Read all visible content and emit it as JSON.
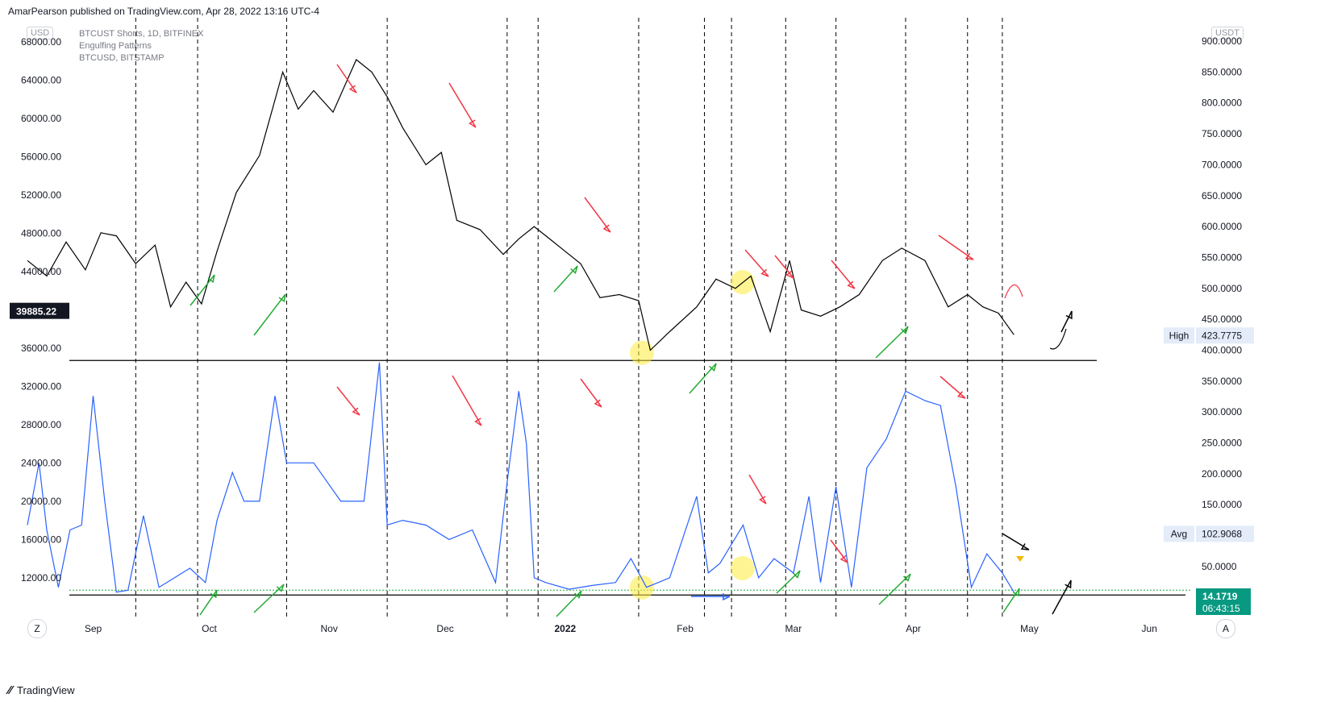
{
  "header": {
    "publisher": "AmarPearson published on TradingView.com, Apr 28, 2022 13:16 UTC-4"
  },
  "footer": {
    "brand": "TradingView"
  },
  "left_currency": "USD",
  "right_currency": "USDT",
  "legend": [
    "BTCUST Shorts, 1D, BITFINEX",
    "Engulfing Patterns",
    "BTCUSD, BITSTAMP"
  ],
  "left_price_tag": "39885.22",
  "buttons": {
    "left": "Z",
    "right": "A"
  },
  "colors": {
    "price_line": "#000000",
    "shorts_line": "#2962ff",
    "red_arrow": "#f23645",
    "green_arrow": "#22ab33",
    "highlight": "#ffeb3b",
    "last_value_bg": "#089981"
  },
  "chart_data": {
    "type": "line",
    "x_axis": {
      "tick_labels": [
        "Sep",
        "Oct",
        "Nov",
        "Dec",
        "2022",
        "Feb",
        "Mar",
        "Apr",
        "May",
        "Jun"
      ],
      "range": [
        "2021-08-10",
        "2022-06-12"
      ]
    },
    "left_axis": {
      "ylim": [
        8200,
        70000
      ],
      "tick_values": [
        12000,
        16000,
        20000,
        24000,
        28000,
        32000,
        36000,
        40000,
        44000,
        48000,
        52000,
        56000,
        60000,
        64000,
        68000
      ],
      "tick_labels": [
        "12000.00",
        "16000.00",
        "20000.00",
        "24000.00",
        "28000.00",
        "32000.00",
        "36000.00",
        "44000.00",
        "48000.00",
        "52000.00",
        "56000.00",
        "60000.00",
        "64000.00",
        "68000.00"
      ]
    },
    "right_axis": {
      "ylim": [
        -27,
        930
      ],
      "tick_values": [
        50,
        100,
        150,
        200,
        250,
        300,
        350,
        400,
        450,
        500,
        550,
        600,
        650,
        700,
        750,
        800,
        850,
        900
      ],
      "tick_labels": [
        "50.0000",
        "100.0000",
        "150.0000",
        "200.0000",
        "250.0000",
        "300.0000",
        "350.0000",
        "400.0000",
        "450.0000",
        "500.0000",
        "550.0000",
        "600.0000",
        "650.0000",
        "700.0000",
        "750.0000",
        "800.0000",
        "850.0000",
        "900.0000"
      ]
    },
    "series": [
      {
        "name": "BTCUSD, BITSTAMP",
        "axis": "right",
        "x": [
          "2021-08-15",
          "2021-08-20",
          "2021-08-25",
          "2021-08-30",
          "2021-09-03",
          "2021-09-07",
          "2021-09-12",
          "2021-09-17",
          "2021-09-21",
          "2021-09-25",
          "2021-09-29",
          "2021-10-03",
          "2021-10-08",
          "2021-10-14",
          "2021-10-20",
          "2021-10-24",
          "2021-10-28",
          "2021-11-02",
          "2021-11-08",
          "2021-11-12",
          "2021-11-16",
          "2021-11-20",
          "2021-11-26",
          "2021-11-30",
          "2021-12-04",
          "2021-12-10",
          "2021-12-16",
          "2021-12-20",
          "2021-12-24",
          "2021-12-28",
          "2022-01-01",
          "2022-01-05",
          "2022-01-10",
          "2022-01-15",
          "2022-01-20",
          "2022-01-23",
          "2022-01-28",
          "2022-02-04",
          "2022-02-09",
          "2022-02-14",
          "2022-02-18",
          "2022-02-23",
          "2022-02-28",
          "2022-03-03",
          "2022-03-08",
          "2022-03-13",
          "2022-03-18",
          "2022-03-24",
          "2022-03-29",
          "2022-04-04",
          "2022-04-10",
          "2022-04-15",
          "2022-04-19",
          "2022-04-23",
          "2022-04-27"
        ],
        "values": [
          545,
          520,
          575,
          530,
          590,
          585,
          540,
          570,
          470,
          510,
          475,
          560,
          655,
          715,
          850,
          790,
          820,
          785,
          870,
          850,
          810,
          760,
          700,
          720,
          610,
          595,
          555,
          580,
          600,
          580,
          560,
          540,
          485,
          490,
          480,
          400,
          430,
          470,
          515,
          500,
          520,
          430,
          545,
          465,
          455,
          470,
          490,
          545,
          565,
          545,
          470,
          490,
          470,
          460,
          425
        ]
      },
      {
        "name": "BTCUST Shorts, 1D, BITFINEX",
        "axis": "left",
        "x": [
          "2021-08-15",
          "2021-08-18",
          "2021-08-20",
          "2021-08-23",
          "2021-08-26",
          "2021-08-29",
          "2021-09-01",
          "2021-09-04",
          "2021-09-07",
          "2021-09-10",
          "2021-09-14",
          "2021-09-18",
          "2021-09-22",
          "2021-09-26",
          "2021-09-30",
          "2021-10-03",
          "2021-10-07",
          "2021-10-10",
          "2021-10-14",
          "2021-10-18",
          "2021-10-21",
          "2021-10-22",
          "2021-10-28",
          "2021-11-04",
          "2021-11-10",
          "2021-11-14",
          "2021-11-16",
          "2021-11-20",
          "2021-11-26",
          "2021-12-02",
          "2021-12-08",
          "2021-12-14",
          "2021-12-17",
          "2021-12-20",
          "2021-12-22",
          "2021-12-24",
          "2021-12-27",
          "2022-01-02",
          "2022-01-08",
          "2022-01-14",
          "2022-01-18",
          "2022-01-22",
          "2022-01-28",
          "2022-02-04",
          "2022-02-07",
          "2022-02-10",
          "2022-02-16",
          "2022-02-20",
          "2022-02-24",
          "2022-03-01",
          "2022-03-05",
          "2022-03-08",
          "2022-03-12",
          "2022-03-16",
          "2022-03-20",
          "2022-03-25",
          "2022-03-30",
          "2022-04-04",
          "2022-04-08",
          "2022-04-12",
          "2022-04-16",
          "2022-04-20",
          "2022-04-24",
          "2022-04-27"
        ],
        "values": [
          17500,
          24000,
          17000,
          11000,
          17000,
          17500,
          31000,
          20000,
          10500,
          10700,
          18500,
          11000,
          12000,
          13000,
          11500,
          18000,
          23000,
          20000,
          20000,
          31000,
          24000,
          24000,
          24000,
          20000,
          20000,
          34500,
          17500,
          18000,
          17500,
          16000,
          17000,
          11500,
          22000,
          31500,
          26000,
          12000,
          11500,
          10800,
          11200,
          11500,
          14000,
          11000,
          12000,
          20500,
          12500,
          13500,
          17500,
          12000,
          14000,
          12500,
          20500,
          11500,
          21500,
          11000,
          23500,
          26500,
          31500,
          30500,
          30000,
          21500,
          11000,
          14500,
          12500,
          10500
        ]
      }
    ],
    "annotations": {
      "price_labels": [
        {
          "label": "High",
          "value": "423.7775"
        },
        {
          "label": "Avg",
          "value": "102.9068"
        }
      ],
      "last_value": {
        "value": "14.1719",
        "countdown": "06:43:15"
      },
      "vertical_event_dates": [
        "2021-09-12",
        "2021-09-28",
        "2021-10-21",
        "2021-11-16",
        "2021-12-17",
        "2021-12-25",
        "2022-01-20",
        "2022-02-06",
        "2022-02-13",
        "2022-02-27",
        "2022-03-12",
        "2022-03-30",
        "2022-04-15",
        "2022-04-24"
      ],
      "horizontal_level_upper": 34700,
      "horizontal_level_lower": 10200,
      "dotted_level": 10700
    }
  }
}
